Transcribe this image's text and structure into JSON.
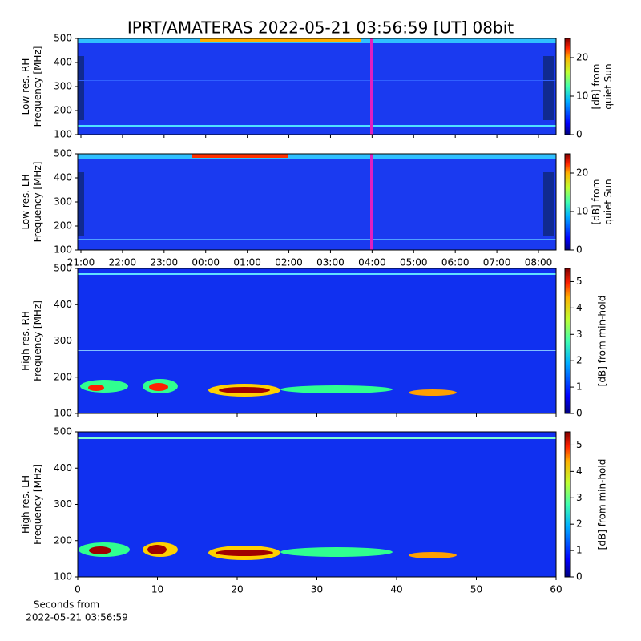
{
  "title": "IPRT/AMATERAS 2022-05-21 03:56:59 [UT]   08bit",
  "x_label": [
    "Seconds from",
    "2022-05-21 03:56:59"
  ],
  "chart_data": [
    {
      "type": "heatmap",
      "ylabel": [
        "Low res. RH",
        "Frequency [MHz]"
      ],
      "ylim": [
        100,
        500
      ],
      "yticks": [
        100,
        200,
        300,
        400,
        500
      ],
      "colorbar": {
        "label": [
          "[dB] from",
          "quiet Sun"
        ],
        "lim": [
          0,
          25
        ],
        "ticks": [
          0,
          10,
          20
        ]
      }
    },
    {
      "type": "heatmap",
      "ylabel": [
        "Low res. LH",
        "Frequency [MHz]"
      ],
      "ylim": [
        100,
        500
      ],
      "yticks": [
        100,
        200,
        300,
        400,
        500
      ],
      "xticks": [
        "21:00",
        "22:00",
        "23:00",
        "00:00",
        "01:00",
        "02:00",
        "03:00",
        "04:00",
        "05:00",
        "06:00",
        "07:00",
        "08:00"
      ],
      "colorbar": {
        "label": [
          "[dB] from",
          "quiet Sun"
        ],
        "lim": [
          0,
          25
        ],
        "ticks": [
          0,
          10,
          20
        ]
      }
    },
    {
      "type": "heatmap",
      "ylabel": [
        "High res. RH",
        "Frequency [MHz]"
      ],
      "ylim": [
        100,
        500
      ],
      "yticks": [
        100,
        200,
        300,
        400,
        500
      ],
      "colorbar": {
        "label": [
          "[dB] from min-hold"
        ],
        "lim": [
          0,
          5.5
        ],
        "ticks": [
          0,
          1,
          2,
          3,
          4,
          5
        ]
      }
    },
    {
      "type": "heatmap",
      "ylabel": [
        "High res. LH",
        "Frequency [MHz]"
      ],
      "ylim": [
        100,
        500
      ],
      "yticks": [
        100,
        200,
        300,
        400,
        500
      ],
      "xlim": [
        0,
        60
      ],
      "xticks": [
        0,
        10,
        20,
        30,
        40,
        50,
        60
      ],
      "colorbar": {
        "label": [
          "[dB] from min-hold"
        ],
        "lim": [
          0,
          5.5
        ],
        "ticks": [
          0,
          1,
          2,
          3,
          4,
          5
        ]
      }
    }
  ]
}
